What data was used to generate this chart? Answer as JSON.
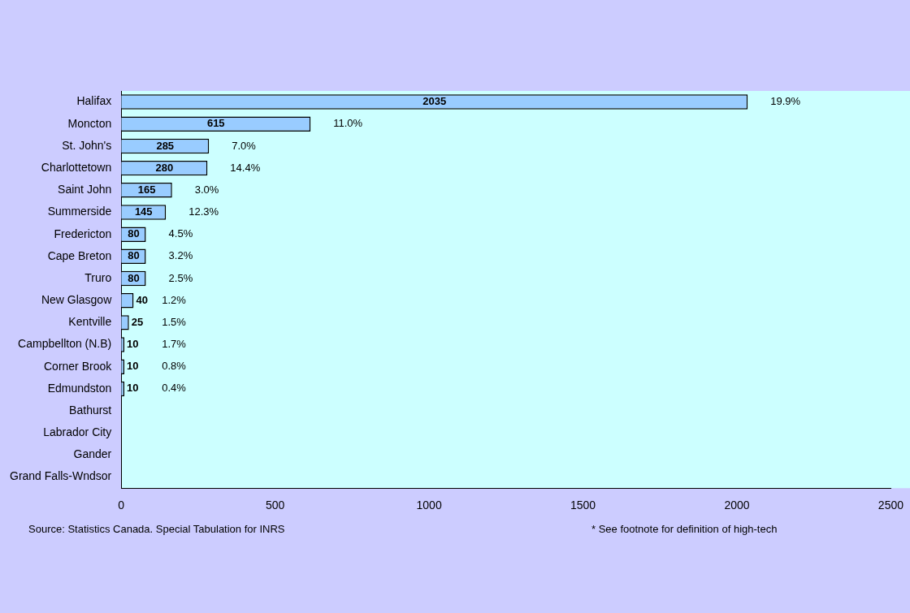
{
  "chart_data": {
    "type": "bar",
    "orientation": "horizontal",
    "categories": [
      "Halifax",
      "Moncton",
      "St. John's",
      "Charlottetown",
      "Saint John",
      "Summerside",
      "Fredericton",
      "Cape Breton",
      "Truro",
      "New Glasgow",
      "Kentville",
      "Campbellton (N.B)",
      "Corner Brook",
      "Edmundston",
      "Bathurst",
      "Labrador City",
      "Gander",
      "Grand Falls-Wndsor"
    ],
    "values": [
      2035,
      615,
      285,
      280,
      165,
      145,
      80,
      80,
      80,
      40,
      25,
      10,
      10,
      10,
      null,
      null,
      null,
      null
    ],
    "color": "#99ccff",
    "data_labels": true,
    "xlim": [
      0,
      2500
    ],
    "xticks": [
      0,
      500,
      1000,
      1500,
      2000,
      2500
    ],
    "grid": false,
    "legend": false,
    "annotations": [
      "19.9%",
      "11.0%",
      "7.0%",
      "14.4%",
      "3.0%",
      "12.3%",
      "4.5%",
      "3.2%",
      "2.5%",
      "1.2%",
      "1.5%",
      "1.7%",
      "0.8%",
      "0.4%",
      "Source: Statistics Canada. Special Tabulation for INRS",
      "* See footnote for definition of high-tech"
    ]
  }
}
